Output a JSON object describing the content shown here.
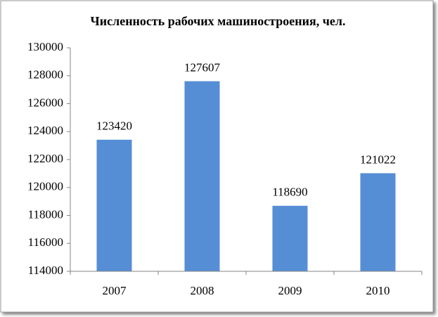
{
  "chart_data": {
    "type": "bar",
    "title": "Численность рабочих машиностроения, чел.",
    "categories": [
      "2007",
      "2008",
      "2009",
      "2010"
    ],
    "values": [
      123420,
      127607,
      118690,
      121022
    ],
    "color": "#558ed5",
    "ylim": [
      114000,
      130000
    ],
    "yticks": [
      114000,
      116000,
      118000,
      120000,
      122000,
      124000,
      126000,
      128000,
      130000
    ],
    "grid": false
  }
}
